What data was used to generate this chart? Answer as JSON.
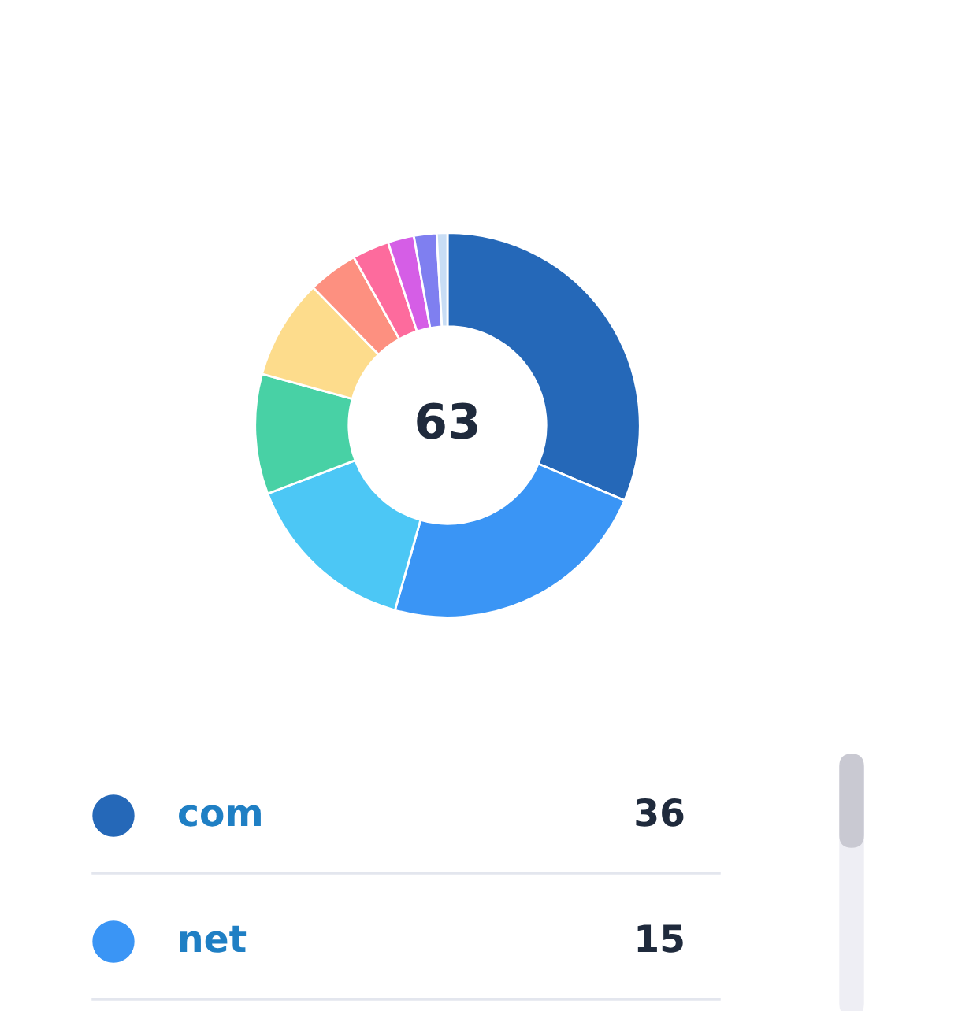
{
  "chart_data": {
    "type": "donut",
    "categories": [
      "com",
      "net",
      null,
      null,
      null,
      null,
      null,
      null,
      null,
      null
    ],
    "values": [
      31.4,
      23.0,
      14.8,
      10.1,
      8.4,
      4.2,
      3.1,
      2.2,
      1.9,
      0.9
    ],
    "colors": [
      "#2568b8",
      "#3a95f5",
      "#4cc7f5",
      "#48d1a5",
      "#fddc8c",
      "#fd9080",
      "#fd6b9d",
      "#d55ee6",
      "#7f7ff0",
      "#c8ddf5"
    ],
    "annotations": [
      "63",
      "36",
      "15"
    ],
    "legend": "bottom"
  }
}
